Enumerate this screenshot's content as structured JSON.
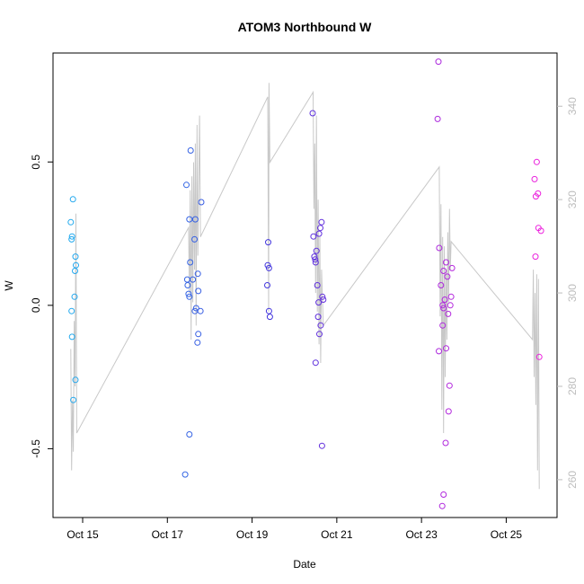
{
  "chart_data": {
    "type": "scatter",
    "title": "ATOM3 Northbound W",
    "xlabel": "Date",
    "ylabel": "W",
    "x_ticks": [
      "Oct 15",
      "Oct 17",
      "Oct 19",
      "Oct 21",
      "Oct 23",
      "Oct 25"
    ],
    "x_tick_days": [
      15,
      17,
      19,
      21,
      23,
      25
    ],
    "xlim": [
      14.3,
      26.2
    ],
    "y_ticks": [
      "-0.5",
      "0.0",
      "0.5"
    ],
    "y_tick_values": [
      -0.5,
      0,
      0.5
    ],
    "ylim": [
      -0.74,
      0.88
    ],
    "y2_ticks": [
      "260",
      "280",
      "300",
      "320",
      "340"
    ],
    "y2_tick_values": [
      260,
      280,
      300,
      320,
      340
    ],
    "y2lim": [
      251.9,
      351.4
    ],
    "grid": false,
    "colors": {
      "line": "#c8c8c8",
      "right_axis": "#bdbdbd",
      "point_start": "#22aaee",
      "point_mid": "#4433dd",
      "point_end": "#ee22dd"
    },
    "points": [
      {
        "x": 14.77,
        "y": 0.37
      },
      {
        "x": 14.72,
        "y": 0.29
      },
      {
        "x": 14.75,
        "y": 0.24
      },
      {
        "x": 14.74,
        "y": 0.23
      },
      {
        "x": 14.83,
        "y": 0.17
      },
      {
        "x": 14.84,
        "y": 0.14
      },
      {
        "x": 14.82,
        "y": 0.12
      },
      {
        "x": 14.81,
        "y": 0.03
      },
      {
        "x": 14.74,
        "y": -0.02
      },
      {
        "x": 14.75,
        "y": -0.11
      },
      {
        "x": 14.83,
        "y": -0.26
      },
      {
        "x": 14.78,
        "y": -0.33
      },
      {
        "x": 17.55,
        "y": 0.54
      },
      {
        "x": 17.45,
        "y": 0.42
      },
      {
        "x": 17.8,
        "y": 0.36
      },
      {
        "x": 17.52,
        "y": 0.3
      },
      {
        "x": 17.66,
        "y": 0.3
      },
      {
        "x": 17.64,
        "y": 0.23
      },
      {
        "x": 17.54,
        "y": 0.15
      },
      {
        "x": 17.72,
        "y": 0.11
      },
      {
        "x": 17.47,
        "y": 0.09
      },
      {
        "x": 17.6,
        "y": 0.09
      },
      {
        "x": 17.48,
        "y": 0.07
      },
      {
        "x": 17.73,
        "y": 0.05
      },
      {
        "x": 17.5,
        "y": 0.04
      },
      {
        "x": 17.52,
        "y": 0.03
      },
      {
        "x": 17.68,
        "y": -0.01
      },
      {
        "x": 17.65,
        "y": -0.02
      },
      {
        "x": 17.78,
        "y": -0.02
      },
      {
        "x": 17.73,
        "y": -0.1
      },
      {
        "x": 17.71,
        "y": -0.13
      },
      {
        "x": 17.52,
        "y": -0.45
      },
      {
        "x": 17.42,
        "y": -0.59
      },
      {
        "x": 19.38,
        "y": 0.22
      },
      {
        "x": 19.37,
        "y": 0.14
      },
      {
        "x": 19.4,
        "y": 0.13
      },
      {
        "x": 19.36,
        "y": 0.07
      },
      {
        "x": 19.4,
        "y": -0.02
      },
      {
        "x": 19.42,
        "y": -0.04
      },
      {
        "x": 20.43,
        "y": 0.67
      },
      {
        "x": 20.64,
        "y": 0.29
      },
      {
        "x": 20.61,
        "y": 0.27
      },
      {
        "x": 20.58,
        "y": 0.25
      },
      {
        "x": 20.45,
        "y": 0.24
      },
      {
        "x": 20.52,
        "y": 0.19
      },
      {
        "x": 20.47,
        "y": 0.17
      },
      {
        "x": 20.49,
        "y": 0.16
      },
      {
        "x": 20.5,
        "y": 0.15
      },
      {
        "x": 20.54,
        "y": 0.07
      },
      {
        "x": 20.66,
        "y": 0.03
      },
      {
        "x": 20.68,
        "y": 0.02
      },
      {
        "x": 20.57,
        "y": 0.01
      },
      {
        "x": 20.56,
        "y": -0.04
      },
      {
        "x": 20.62,
        "y": -0.07
      },
      {
        "x": 20.59,
        "y": -0.1
      },
      {
        "x": 20.5,
        "y": -0.2
      },
      {
        "x": 20.65,
        "y": -0.49
      },
      {
        "x": 23.4,
        "y": 0.85
      },
      {
        "x": 23.38,
        "y": 0.65
      },
      {
        "x": 23.42,
        "y": 0.2
      },
      {
        "x": 23.58,
        "y": 0.15
      },
      {
        "x": 23.72,
        "y": 0.13
      },
      {
        "x": 23.52,
        "y": 0.12
      },
      {
        "x": 23.61,
        "y": 0.1
      },
      {
        "x": 23.46,
        "y": 0.07
      },
      {
        "x": 23.7,
        "y": 0.03
      },
      {
        "x": 23.55,
        "y": 0.02
      },
      {
        "x": 23.5,
        "y": 0.0
      },
      {
        "x": 23.68,
        "y": 0.0
      },
      {
        "x": 23.52,
        "y": -0.01
      },
      {
        "x": 23.63,
        "y": -0.03
      },
      {
        "x": 23.5,
        "y": -0.07
      },
      {
        "x": 23.58,
        "y": -0.15
      },
      {
        "x": 23.41,
        "y": -0.16
      },
      {
        "x": 23.66,
        "y": -0.28
      },
      {
        "x": 23.64,
        "y": -0.37
      },
      {
        "x": 23.57,
        "y": -0.48
      },
      {
        "x": 23.52,
        "y": -0.66
      },
      {
        "x": 23.49,
        "y": -0.7
      },
      {
        "x": 25.72,
        "y": 0.5
      },
      {
        "x": 25.67,
        "y": 0.44
      },
      {
        "x": 25.75,
        "y": 0.39
      },
      {
        "x": 25.7,
        "y": 0.38
      },
      {
        "x": 25.76,
        "y": 0.27
      },
      {
        "x": 25.82,
        "y": 0.26
      },
      {
        "x": 25.69,
        "y": 0.17
      },
      {
        "x": 25.78,
        "y": -0.18
      }
    ],
    "line_y2": [
      {
        "x": 14.72,
        "y": 288
      },
      {
        "x": 14.74,
        "y": 262
      },
      {
        "x": 14.76,
        "y": 277
      },
      {
        "x": 14.78,
        "y": 266
      },
      {
        "x": 14.8,
        "y": 294
      },
      {
        "x": 14.82,
        "y": 280
      },
      {
        "x": 14.84,
        "y": 317
      },
      {
        "x": 14.86,
        "y": 270
      },
      {
        "x": 17.5,
        "y": 314
      },
      {
        "x": 17.52,
        "y": 300
      },
      {
        "x": 17.54,
        "y": 322
      },
      {
        "x": 17.56,
        "y": 290
      },
      {
        "x": 17.58,
        "y": 325
      },
      {
        "x": 17.6,
        "y": 298
      },
      {
        "x": 17.62,
        "y": 328
      },
      {
        "x": 17.64,
        "y": 305
      },
      {
        "x": 17.66,
        "y": 332
      },
      {
        "x": 17.68,
        "y": 293
      },
      {
        "x": 17.7,
        "y": 336
      },
      {
        "x": 17.72,
        "y": 308
      },
      {
        "x": 17.76,
        "y": 338
      },
      {
        "x": 17.78,
        "y": 312
      },
      {
        "x": 19.37,
        "y": 342
      },
      {
        "x": 19.39,
        "y": 296
      },
      {
        "x": 19.4,
        "y": 345
      },
      {
        "x": 19.42,
        "y": 328
      },
      {
        "x": 20.44,
        "y": 343
      },
      {
        "x": 20.46,
        "y": 318
      },
      {
        "x": 20.48,
        "y": 332
      },
      {
        "x": 20.5,
        "y": 300
      },
      {
        "x": 20.52,
        "y": 338
      },
      {
        "x": 20.54,
        "y": 296
      },
      {
        "x": 20.56,
        "y": 320
      },
      {
        "x": 20.58,
        "y": 289
      },
      {
        "x": 20.6,
        "y": 312
      },
      {
        "x": 20.62,
        "y": 285
      },
      {
        "x": 20.64,
        "y": 305
      },
      {
        "x": 20.68,
        "y": 293
      },
      {
        "x": 23.42,
        "y": 327
      },
      {
        "x": 23.44,
        "y": 295
      },
      {
        "x": 23.46,
        "y": 319
      },
      {
        "x": 23.48,
        "y": 275
      },
      {
        "x": 23.5,
        "y": 312
      },
      {
        "x": 23.52,
        "y": 270
      },
      {
        "x": 23.54,
        "y": 310
      },
      {
        "x": 23.56,
        "y": 282
      },
      {
        "x": 23.58,
        "y": 305
      },
      {
        "x": 23.6,
        "y": 290
      },
      {
        "x": 23.62,
        "y": 313
      },
      {
        "x": 23.64,
        "y": 298
      },
      {
        "x": 23.66,
        "y": 318
      },
      {
        "x": 23.68,
        "y": 305
      },
      {
        "x": 23.7,
        "y": 311
      },
      {
        "x": 25.62,
        "y": 290
      },
      {
        "x": 25.64,
        "y": 305
      },
      {
        "x": 25.66,
        "y": 282
      },
      {
        "x": 25.68,
        "y": 300
      },
      {
        "x": 25.7,
        "y": 276
      },
      {
        "x": 25.72,
        "y": 304
      },
      {
        "x": 25.74,
        "y": 262
      },
      {
        "x": 25.76,
        "y": 303
      },
      {
        "x": 25.78,
        "y": 258
      }
    ]
  }
}
